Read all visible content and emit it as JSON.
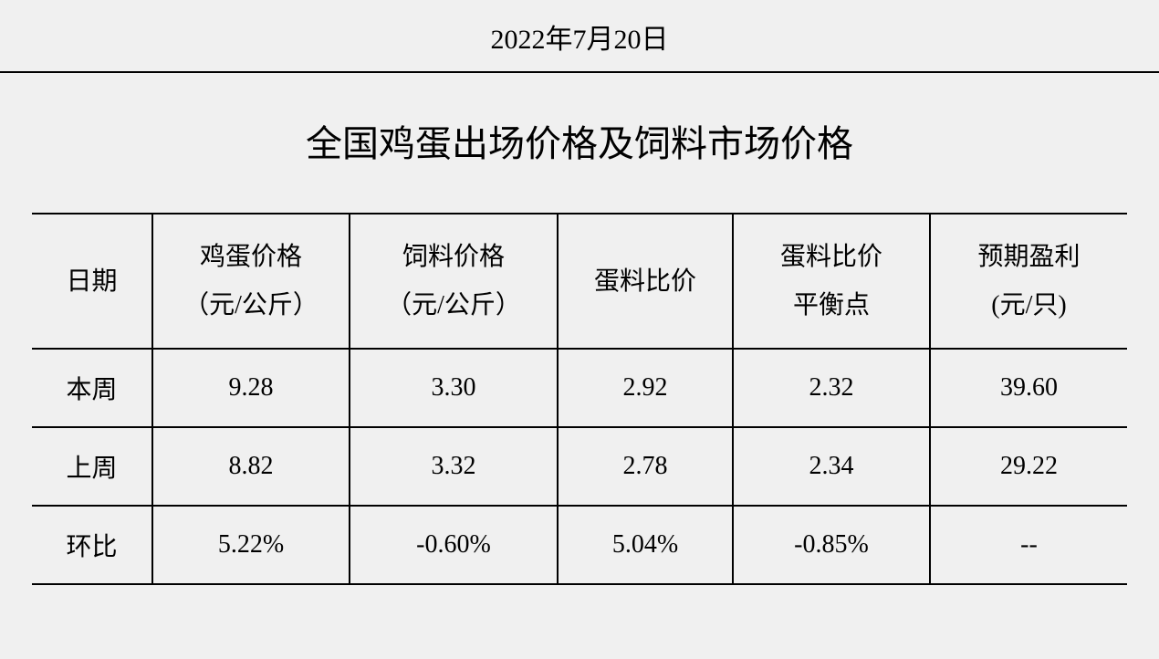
{
  "date": "2022年7月20日",
  "title": "全国鸡蛋出场价格及饲料市场价格",
  "table": {
    "type": "table",
    "background_color": "#f0f0f0",
    "text_color": "#000000",
    "border_color": "#000000",
    "header_fontsize": 28,
    "cell_fontsize": 28,
    "columns": [
      {
        "label": "日期",
        "width": "11%"
      },
      {
        "label": "鸡蛋价格（元/公斤）",
        "width": "18%"
      },
      {
        "label": "饲料价格（元/公斤）",
        "width": "19%"
      },
      {
        "label": "蛋料比价",
        "width": "16%"
      },
      {
        "label": "蛋料比价平衡点",
        "width": "18%"
      },
      {
        "label": "预期盈利(元/只)",
        "width": "18%"
      }
    ],
    "headers_multiline": [
      [
        "日期"
      ],
      [
        "鸡蛋价格",
        "（元/公斤）"
      ],
      [
        "饲料价格",
        "（元/公斤）"
      ],
      [
        "蛋料比价"
      ],
      [
        "蛋料比价",
        "平衡点"
      ],
      [
        "预期盈利",
        "(元/只)"
      ]
    ],
    "rows": [
      {
        "label": "本周",
        "egg_price": "9.28",
        "feed_price": "3.30",
        "ratio": "2.92",
        "balance": "2.32",
        "profit": "39.60"
      },
      {
        "label": "上周",
        "egg_price": "8.82",
        "feed_price": "3.32",
        "ratio": "2.78",
        "balance": "2.34",
        "profit": "29.22"
      },
      {
        "label": "环比",
        "egg_price": "5.22%",
        "feed_price": "-0.60%",
        "ratio": "5.04%",
        "balance": "-0.85%",
        "profit": "--"
      }
    ]
  }
}
